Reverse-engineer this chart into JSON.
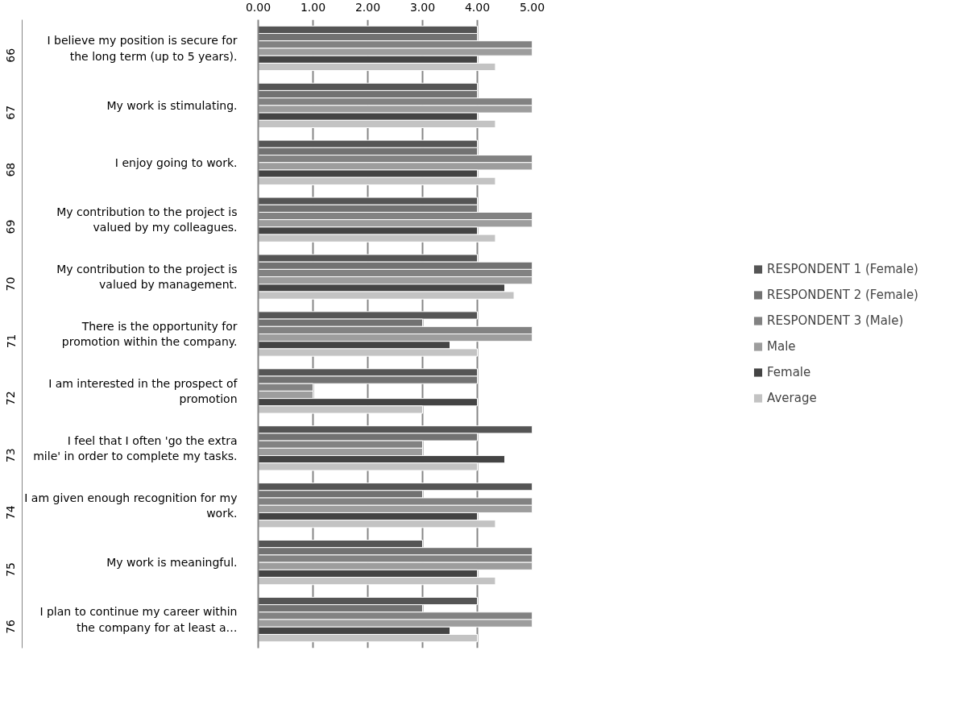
{
  "chart_data": {
    "type": "bar",
    "orientation": "horizontal",
    "categories": [
      "I believe my position is secure for the long term (up to 5 years).",
      "My work is stimulating.",
      "I enjoy going to work.",
      "My contribution to the project is valued by my colleagues.",
      "My contribution to the project is valued by management.",
      "There is the opportunity for promotion within the company.",
      "I am interested in the prospect of promotion",
      "I feel that I often 'go the extra mile' in order to complete my tasks.",
      "I am given enough recognition for my work.",
      "My work is meaningful.",
      "I plan to continue my career within the company for at least a…"
    ],
    "series": [
      {
        "name": "RESPONDENT 1 (Female)",
        "color": "#555555",
        "values": [
          4,
          4,
          4,
          4,
          4,
          4,
          4,
          5,
          5,
          3,
          4
        ]
      },
      {
        "name": "RESPONDENT 2 (Female)",
        "color": "#727272",
        "values": [
          4,
          4,
          4,
          4,
          5,
          3,
          4,
          4,
          3,
          5,
          3
        ]
      },
      {
        "name": "RESPONDENT 3 (Male)",
        "color": "#828282",
        "values": [
          5,
          5,
          5,
          5,
          5,
          5,
          1,
          3,
          5,
          5,
          5
        ]
      },
      {
        "name": "Male",
        "color": "#9d9d9d",
        "values": [
          5,
          5,
          5,
          5,
          5,
          5,
          1,
          3,
          5,
          5,
          5
        ]
      },
      {
        "name": "Female",
        "color": "#444444",
        "values": [
          4,
          4,
          4,
          4,
          4.5,
          3.5,
          4,
          4.5,
          4,
          4,
          3.5
        ]
      },
      {
        "name": "Average",
        "color": "#c3c3c3",
        "values": [
          4.33,
          4.33,
          4.33,
          4.33,
          4.67,
          4,
          3,
          4,
          4.33,
          4.33,
          4
        ]
      }
    ],
    "annotations": [
      "66",
      "67",
      "68",
      "69",
      "70",
      "71",
      "72",
      "73",
      "74",
      "75",
      "76"
    ],
    "xlim": [
      0,
      5
    ],
    "xticks": [
      {
        "value": 0,
        "label": "0.00"
      },
      {
        "value": 1,
        "label": "1.00"
      },
      {
        "value": 2,
        "label": "2.00"
      },
      {
        "value": 3,
        "label": "3.00"
      },
      {
        "value": 4,
        "label": "4.00"
      },
      {
        "value": 5,
        "label": "5.00"
      }
    ],
    "grid": "x",
    "legend": "right"
  }
}
